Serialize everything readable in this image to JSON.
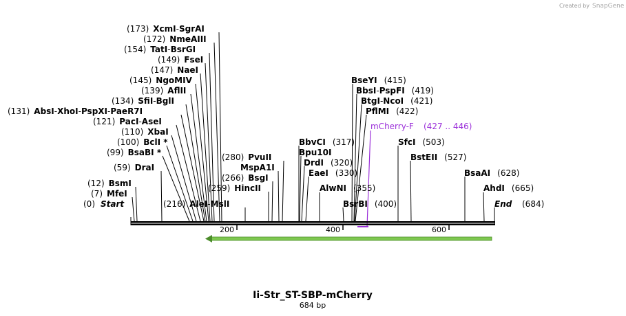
{
  "credit": {
    "text": "Created by",
    "brand": "SnapGene"
  },
  "title": "Ii-Str_ST-SBP-mCherry",
  "length_label": "684 bp",
  "map": {
    "start_label": "Start",
    "start_pos": "(0)",
    "end_label": "End",
    "end_pos": "(684)",
    "ticks": [
      "200",
      "400",
      "600"
    ],
    "primer": {
      "name": "mCherry-F",
      "range": "(427 .. 446)"
    }
  },
  "sites": [
    {
      "pos": "(173)",
      "names": [
        "XcmI",
        "SgrAI"
      ]
    },
    {
      "pos": "(172)",
      "names": [
        "NmeAIII"
      ]
    },
    {
      "pos": "(154)",
      "names": [
        "TatI",
        "BsrGI"
      ]
    },
    {
      "pos": "(149)",
      "names": [
        "FseI"
      ]
    },
    {
      "pos": "(147)",
      "names": [
        "NaeI"
      ]
    },
    {
      "pos": "(145)",
      "names": [
        "NgoMIV"
      ]
    },
    {
      "pos": "(139)",
      "names": [
        "AflII"
      ]
    },
    {
      "pos": "(134)",
      "names": [
        "SfiI",
        "BglI"
      ]
    },
    {
      "pos": "(131)",
      "names": [
        "AbsI",
        "XhoI",
        "PspXI",
        "PaeR7I"
      ]
    },
    {
      "pos": "(121)",
      "names": [
        "PacI",
        "AseI"
      ]
    },
    {
      "pos": "(110)",
      "names": [
        "XbaI"
      ]
    },
    {
      "pos": "(100)",
      "names": [
        "BclI *"
      ]
    },
    {
      "pos": "(99)",
      "names": [
        "BsaBI *"
      ]
    },
    {
      "pos": "(59)",
      "names": [
        "DraI"
      ]
    },
    {
      "pos": "(12)",
      "names": [
        "BsmI"
      ]
    },
    {
      "pos": "(7)",
      "names": [
        "MfeI"
      ]
    },
    {
      "pos": "(216)",
      "names": [
        "AleI",
        "MslI"
      ]
    },
    {
      "pos": "(259)",
      "names": [
        "HincII"
      ]
    },
    {
      "pos": "(266)",
      "names": [
        "BsgI"
      ]
    },
    {
      "pos": "",
      "names": [
        "MspA1I"
      ]
    },
    {
      "pos": "(280)",
      "names": [
        "PvuII"
      ]
    },
    {
      "pos": "(317)",
      "names": [
        "BbvCI"
      ]
    },
    {
      "pos": "",
      "names": [
        "Bpu10I"
      ]
    },
    {
      "pos": "(320)",
      "names": [
        "DrdI"
      ]
    },
    {
      "pos": "(330)",
      "names": [
        "EaeI"
      ]
    },
    {
      "pos": "(355)",
      "names": [
        "AlwNI"
      ]
    },
    {
      "pos": "(400)",
      "names": [
        "BsrBI"
      ]
    },
    {
      "pos": "(415)",
      "names": [
        "BseYI"
      ]
    },
    {
      "pos": "(419)",
      "names": [
        "BbsI",
        "PspFI"
      ]
    },
    {
      "pos": "(421)",
      "names": [
        "BtgI",
        "NcoI"
      ]
    },
    {
      "pos": "(422)",
      "names": [
        "PflMI"
      ]
    },
    {
      "pos": "(503)",
      "names": [
        "SfcI"
      ]
    },
    {
      "pos": "(527)",
      "names": [
        "BstEII"
      ]
    },
    {
      "pos": "(628)",
      "names": [
        "BsaAI"
      ]
    },
    {
      "pos": "(665)",
      "names": [
        "AhdI"
      ]
    }
  ],
  "colors": {
    "primer": "#9b30d9",
    "arrow": "#7ec850",
    "backbone": "#000000"
  }
}
